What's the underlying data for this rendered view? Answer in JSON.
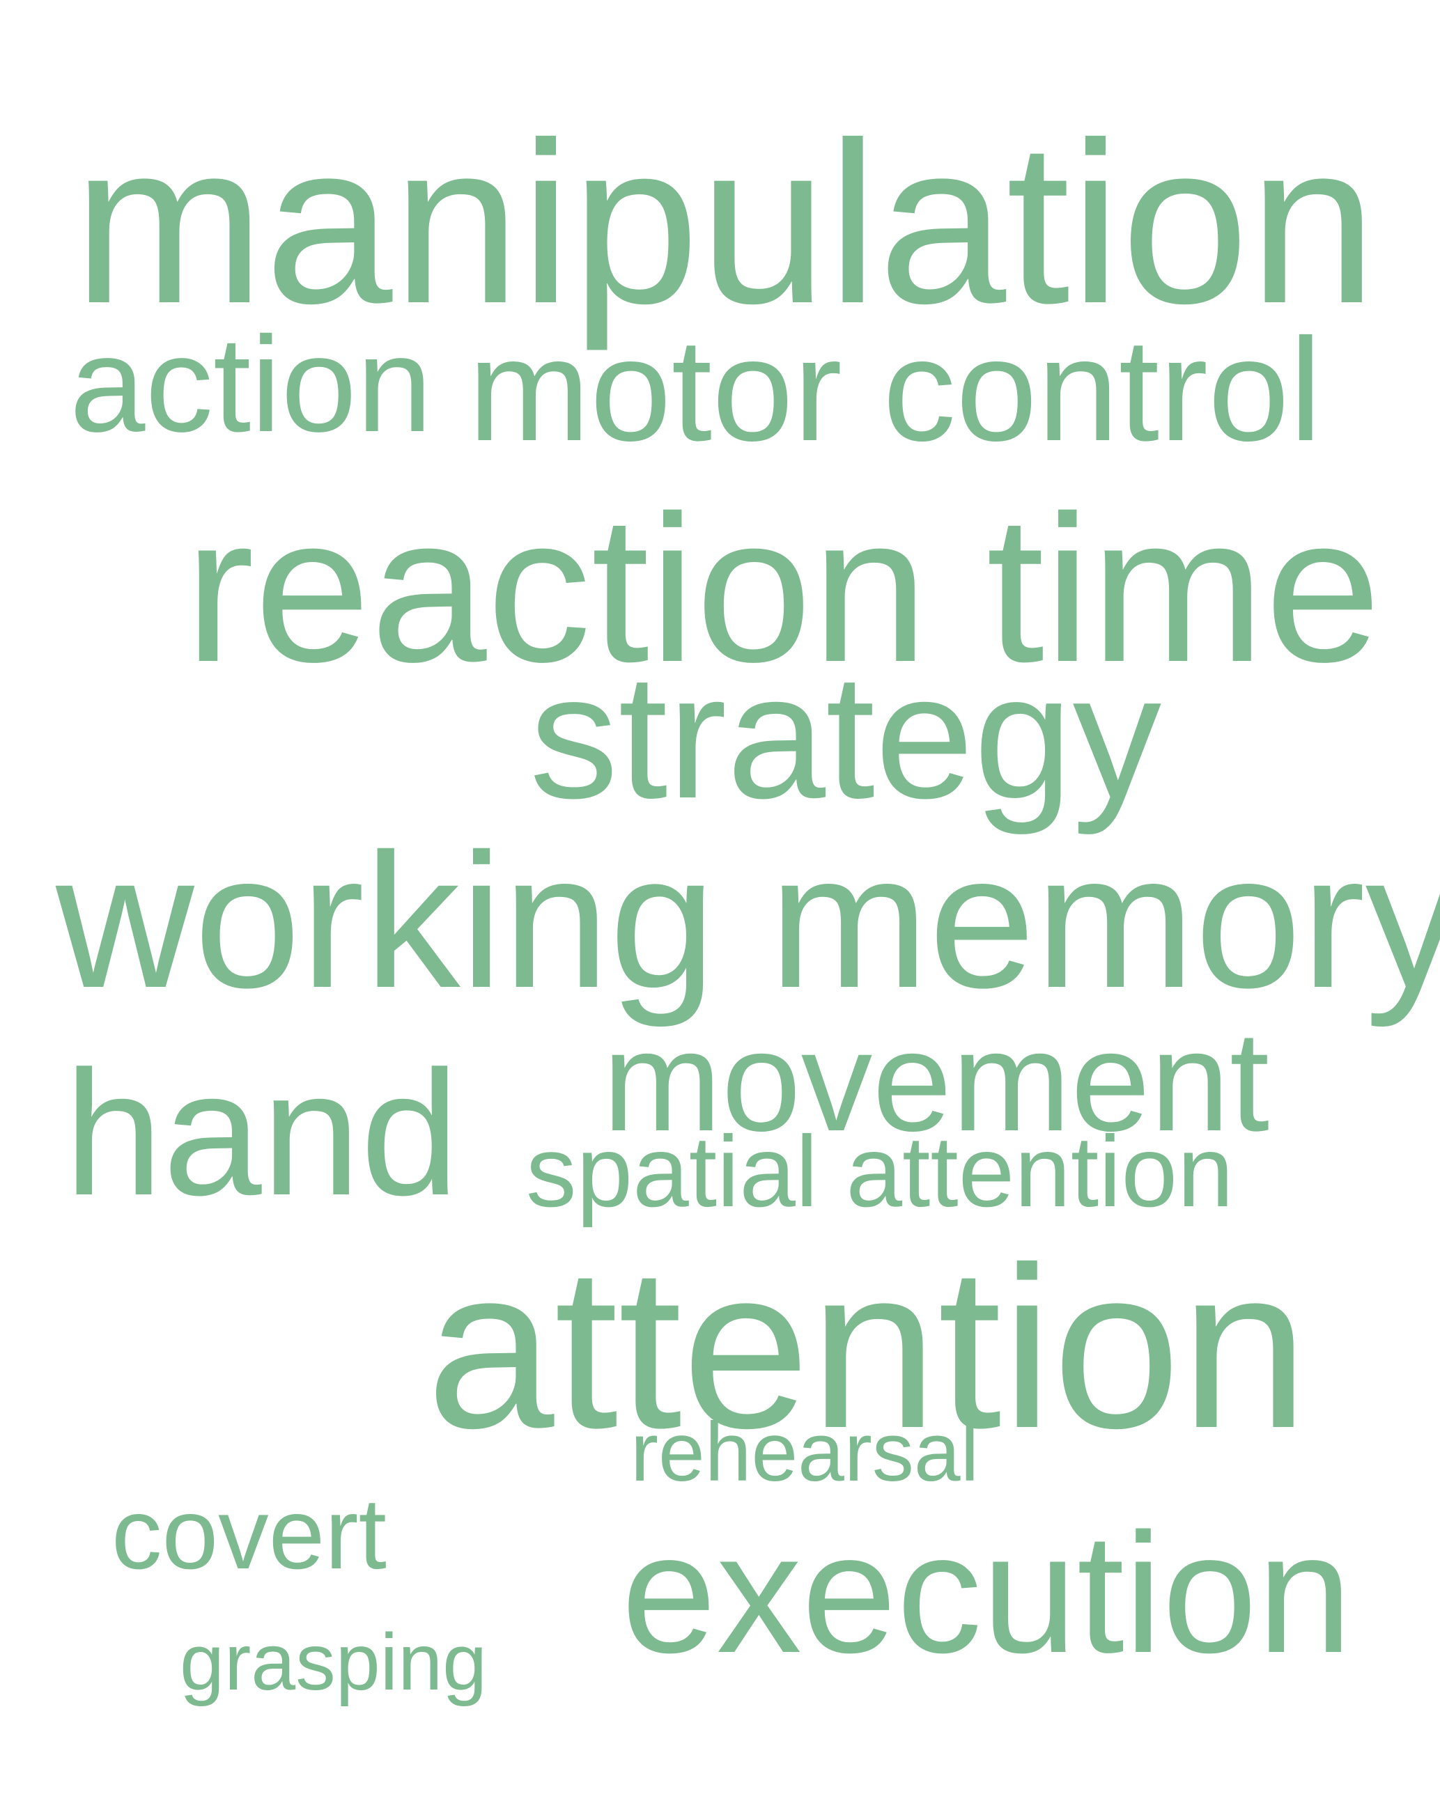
{
  "word_color": "#7dba90",
  "words": [
    "manipulation",
    "action",
    "motor control",
    "reaction time",
    "strategy",
    "working memory",
    "movement",
    "hand",
    "spatial attention",
    "attention",
    "rehearsal",
    "covert",
    "execution",
    "grasping"
  ]
}
